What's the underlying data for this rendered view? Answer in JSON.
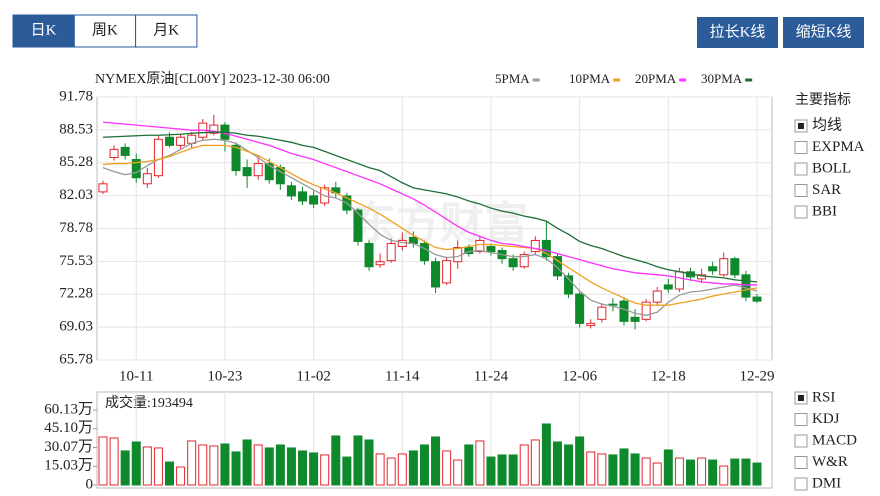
{
  "toolbar": {
    "tabs": [
      {
        "label": "日K",
        "selected": true
      },
      {
        "label": "周K",
        "selected": false
      },
      {
        "label": "月K",
        "selected": false
      }
    ],
    "buttons": [
      "拉长K线",
      "缩短K线"
    ]
  },
  "chart_data": [
    {
      "type": "candlestick",
      "title": "NYMEX原油[CL00Y] 2023-12-30 06:00",
      "watermark": "东方财富",
      "categories": [
        null,
        null,
        null,
        "10-11",
        null,
        null,
        null,
        null,
        null,
        null,
        null,
        "10-23",
        null,
        null,
        null,
        null,
        null,
        null,
        null,
        "11-02",
        null,
        null,
        null,
        null,
        null,
        null,
        null,
        "11-14",
        null,
        null,
        null,
        null,
        null,
        null,
        null,
        "11-24",
        null,
        null,
        null,
        null,
        null,
        null,
        null,
        "12-06",
        null,
        null,
        null,
        null,
        null,
        null,
        null,
        "12-18",
        null,
        null,
        null,
        null,
        null,
        null,
        null,
        "12-29"
      ],
      "open": [
        82.4,
        85.8,
        86.8,
        85.6,
        83.2,
        84.0,
        87.8,
        87.0,
        87.2,
        87.8,
        88.2,
        89.0,
        87.0,
        84.8,
        84.0,
        85.2,
        84.8,
        83.0,
        82.4,
        82.0,
        81.3,
        82.8,
        82.0,
        80.6,
        77.3,
        75.2,
        75.6,
        77.0,
        77.9,
        77.3,
        75.5,
        73.4,
        75.5,
        76.9,
        76.5,
        77.0,
        76.6,
        75.8,
        75.0,
        76.5,
        77.6,
        76.0,
        74.1,
        72.3,
        69.2,
        69.8,
        71.3,
        71.6,
        70.0,
        69.8,
        71.5,
        73.2,
        72.8,
        74.5,
        73.8,
        75.0,
        74.2,
        75.8,
        74.2,
        72.0
      ],
      "high": [
        83.5,
        87.0,
        87.2,
        86.2,
        84.8,
        87.9,
        88.3,
        88.1,
        88.3,
        89.6,
        90.0,
        89.3,
        87.3,
        85.6,
        86.0,
        85.7,
        85.1,
        83.4,
        82.9,
        82.5,
        83.1,
        83.4,
        82.3,
        80.8,
        77.6,
        76.3,
        77.8,
        78.4,
        78.5,
        77.6,
        75.9,
        76.0,
        77.6,
        77.2,
        78.0,
        77.3,
        76.9,
        76.2,
        76.5,
        78.0,
        79.5,
        76.3,
        74.4,
        72.5,
        69.8,
        71.4,
        71.9,
        72.0,
        70.8,
        71.8,
        73.0,
        73.8,
        74.9,
        74.9,
        74.8,
        75.5,
        76.4,
        76.0,
        74.6,
        72.3
      ],
      "low": [
        82.2,
        85.5,
        85.6,
        83.3,
        82.8,
        83.8,
        86.8,
        86.6,
        86.7,
        87.5,
        88.0,
        86.4,
        84.0,
        82.8,
        83.6,
        83.2,
        82.6,
        81.6,
        81.1,
        80.8,
        81.0,
        81.8,
        80.2,
        77.1,
        74.6,
        74.9,
        75.4,
        76.6,
        76.9,
        75.2,
        72.4,
        73.2,
        74.8,
        76.0,
        76.3,
        76.1,
        75.3,
        74.6,
        74.8,
        76.2,
        75.6,
        73.7,
        71.9,
        69.0,
        68.9,
        69.5,
        70.6,
        69.2,
        68.8,
        69.6,
        71.2,
        72.4,
        72.5,
        73.6,
        73.4,
        74.2,
        74.0,
        73.9,
        71.6,
        71.4
      ],
      "close": [
        83.2,
        86.6,
        86.0,
        83.8,
        84.2,
        87.6,
        87.0,
        87.8,
        88.0,
        89.2,
        89.0,
        87.6,
        84.5,
        84.0,
        85.2,
        83.6,
        83.2,
        82.0,
        81.5,
        81.2,
        82.8,
        82.3,
        80.6,
        77.5,
        75.0,
        75.5,
        77.3,
        77.6,
        77.3,
        75.6,
        73.0,
        75.6,
        76.9,
        76.3,
        77.6,
        76.5,
        75.8,
        75.0,
        76.2,
        77.6,
        76.0,
        74.1,
        72.3,
        69.4,
        69.4,
        71.0,
        71.2,
        69.6,
        69.6,
        71.5,
        72.6,
        72.8,
        74.5,
        74.0,
        74.2,
        74.6,
        75.8,
        74.2,
        72.0,
        71.6
      ],
      "up_color": "#e3262d",
      "down_color": "#0e8a2c",
      "ylim": [
        65.78,
        91.78
      ],
      "yticks": [
        65.78,
        69.03,
        72.28,
        75.53,
        78.78,
        82.03,
        85.28,
        88.53,
        91.78
      ],
      "series": [
        {
          "name": "5PMA",
          "color": "#9a9a9a",
          "values": [
            84.8,
            84.4,
            84.1,
            84.3,
            85.0,
            85.6,
            86.0,
            86.6,
            87.2,
            87.5,
            87.6,
            87.5,
            87.2,
            86.5,
            85.8,
            85.0,
            84.4,
            83.8,
            83.2,
            82.6,
            82.0,
            81.8,
            81.3,
            80.3,
            79.2,
            78.2,
            77.6,
            77.4,
            77.3,
            76.8,
            76.2,
            75.9,
            76.0,
            76.5,
            76.6,
            76.4,
            76.2,
            76.0,
            76.0,
            76.2,
            75.8,
            74.9,
            73.8,
            72.6,
            71.7,
            71.3,
            71.1,
            70.8,
            70.4,
            70.2,
            70.5,
            71.5,
            72.2,
            72.5,
            72.6,
            72.8,
            73.0,
            73.2,
            72.9,
            72.6
          ]
        },
        {
          "name": "10PMA",
          "color": "#f0a020",
          "values": [
            85.1,
            85.2,
            85.2,
            85.3,
            85.4,
            85.6,
            85.9,
            86.3,
            86.7,
            87.0,
            87.0,
            87.0,
            86.8,
            86.4,
            86.0,
            85.4,
            84.8,
            84.2,
            83.6,
            83.1,
            82.7,
            82.3,
            81.8,
            81.3,
            80.8,
            80.2,
            79.5,
            78.8,
            78.1,
            77.5,
            76.9,
            76.7,
            76.8,
            77.0,
            77.2,
            77.2,
            77.1,
            77.0,
            76.9,
            76.8,
            76.3,
            75.6,
            74.9,
            74.2,
            73.5,
            72.9,
            72.4,
            71.9,
            71.4,
            71.2,
            71.2,
            71.2,
            71.4,
            71.6,
            71.8,
            72.1,
            72.3,
            72.5,
            72.7,
            72.9
          ]
        },
        {
          "name": "20PMA",
          "color": "#ff30ff",
          "values": [
            89.3,
            89.2,
            89.1,
            89.0,
            88.9,
            88.8,
            88.7,
            88.6,
            88.5,
            88.5,
            88.4,
            88.2,
            87.9,
            87.6,
            87.3,
            87.0,
            86.6,
            86.2,
            85.9,
            85.6,
            85.2,
            84.8,
            84.4,
            84.0,
            83.6,
            83.2,
            82.7,
            82.2,
            81.7,
            81.1,
            80.4,
            79.7,
            79.0,
            78.4,
            78.0,
            77.6,
            77.3,
            77.2,
            77.0,
            76.8,
            76.6,
            76.3,
            76.0,
            75.7,
            75.4,
            75.1,
            74.8,
            74.6,
            74.4,
            74.3,
            74.2,
            74.1,
            73.9,
            73.7,
            73.5,
            73.4,
            73.3,
            73.3,
            73.2,
            73.2
          ]
        },
        {
          "name": "30PMA",
          "color": "#1d6e37",
          "values": [
            87.8,
            87.85,
            87.9,
            87.95,
            88.0,
            88.0,
            88.05,
            88.1,
            88.2,
            88.25,
            88.3,
            88.3,
            88.2,
            88.0,
            87.9,
            87.7,
            87.5,
            87.3,
            87.0,
            86.8,
            86.4,
            86.0,
            85.6,
            85.2,
            84.8,
            84.5,
            83.9,
            83.3,
            82.8,
            82.6,
            82.4,
            82.2,
            81.9,
            81.5,
            81.2,
            80.8,
            80.5,
            80.3,
            80.0,
            79.8,
            79.5,
            78.8,
            78.2,
            77.5,
            77.1,
            76.8,
            76.4,
            76.0,
            75.7,
            75.4,
            75.0,
            74.7,
            74.5,
            74.3,
            74.1,
            74.0,
            73.9,
            73.7,
            73.6,
            73.5
          ]
        }
      ]
    },
    {
      "type": "bar",
      "title": "成交量:193494",
      "values": [
        38.5,
        37.7,
        27.3,
        34.5,
        30.5,
        29.7,
        18.4,
        14.4,
        35.3,
        32.1,
        31.3,
        32.9,
        26.5,
        36.1,
        32.1,
        29.7,
        32.1,
        29.7,
        27.3,
        25.7,
        24.1,
        39.3,
        22.4,
        39.3,
        36.1,
        24.9,
        21.6,
        24.9,
        27.3,
        32.1,
        38.5,
        27.3,
        20.0,
        32.1,
        35.3,
        22.4,
        24.1,
        24.1,
        32.1,
        36.1,
        48.9,
        34.5,
        32.1,
        38.5,
        26.5,
        24.9,
        24.1,
        28.9,
        24.9,
        21.6,
        17.6,
        28.1,
        21.6,
        20.0,
        21.6,
        20.0,
        15.2,
        20.8,
        20.8,
        17.6
      ],
      "ylim": [
        0,
        60.13
      ],
      "yticks": [
        0,
        {
          "value": 15.03,
          "label": "15.03万"
        },
        {
          "value": 30.07,
          "label": "30.07万"
        },
        {
          "value": 45.1,
          "label": "45.10万"
        },
        {
          "value": 60.13,
          "label": "60.13万"
        }
      ]
    }
  ],
  "indicators": {
    "title": "主要指标",
    "main": [
      {
        "label": "均线",
        "checked": true
      },
      {
        "label": "EXPMA",
        "checked": false
      },
      {
        "label": "BOLL",
        "checked": false
      },
      {
        "label": "SAR",
        "checked": false
      },
      {
        "label": "BBI",
        "checked": false
      }
    ],
    "sub": [
      {
        "label": "RSI",
        "checked": true
      },
      {
        "label": "KDJ",
        "checked": false
      },
      {
        "label": "MACD",
        "checked": false
      },
      {
        "label": "W&R",
        "checked": false
      },
      {
        "label": "DMI",
        "checked": false
      }
    ]
  }
}
